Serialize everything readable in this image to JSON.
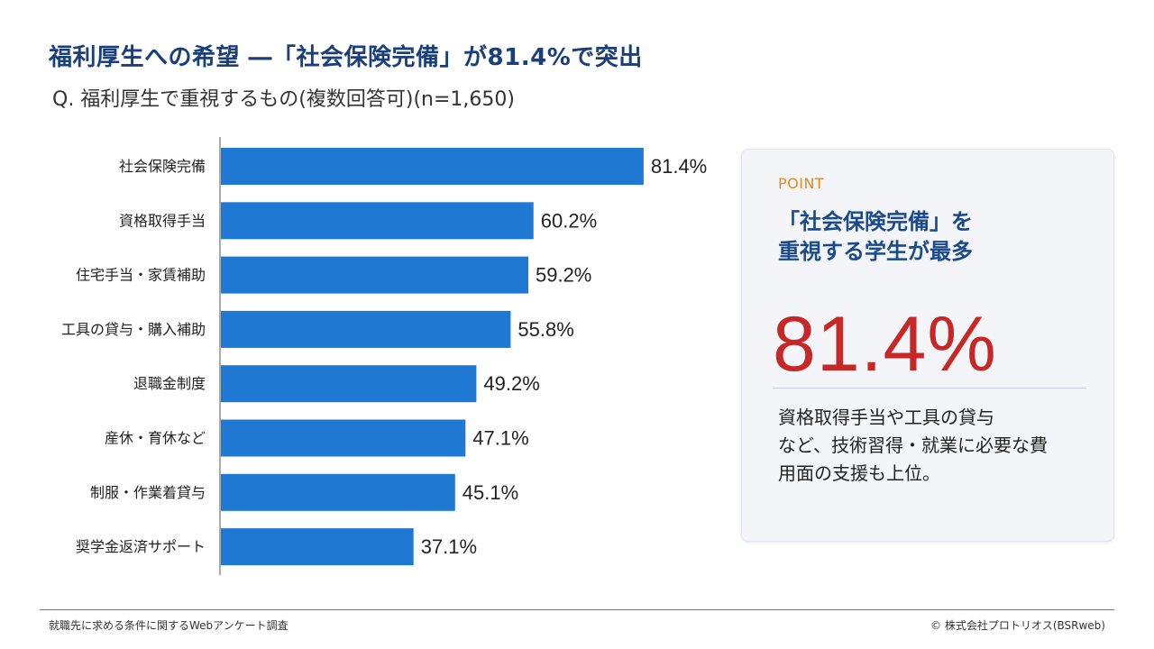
{
  "header": {
    "title": "福利厚生への希望 ―「社会保険完備」が81.4%で突出",
    "subtitle": "Q. 福利厚生で重視するもの(複数回答可)(n=1,650)"
  },
  "chart_data": {
    "type": "bar",
    "orientation": "horizontal",
    "categories": [
      "社会保険完備",
      "資格取得手当",
      "住宅手当・家賃補助",
      "工具の貸与・購入補助",
      "退職金制度",
      "産休・育休など",
      "制服・作業着貸与",
      "奨学金返済サポート"
    ],
    "values": [
      81.4,
      60.2,
      59.2,
      55.8,
      49.2,
      47.1,
      45.1,
      37.1
    ],
    "value_labels": [
      "81.4%",
      "60.2%",
      "59.2%",
      "55.8%",
      "49.2%",
      "47.1%",
      "45.1%",
      "37.1%"
    ],
    "unit": "%",
    "xlim": [
      0,
      100
    ],
    "bar_color": "#1f78d1",
    "grid": false
  },
  "point_panel": {
    "label": "POINT",
    "headline": "「社会保険完備」を\n重視する学生が最多",
    "big_value": "81.4%",
    "body": "資格取得手当や工具の貸与\nなど、技術習得・就業に必要な費\n用面の支援も上位。"
  },
  "colors": {
    "title": "#1b3f7a",
    "bar": "#1f78d1",
    "point_label": "#e48a1a",
    "headline": "#1b4a8a",
    "big_value": "#c62828"
  },
  "footer": {
    "source": "就職先に求める条件に関するWebアンケート調査",
    "copyright": "© 株式会社プロトリオス(BSRweb)"
  }
}
